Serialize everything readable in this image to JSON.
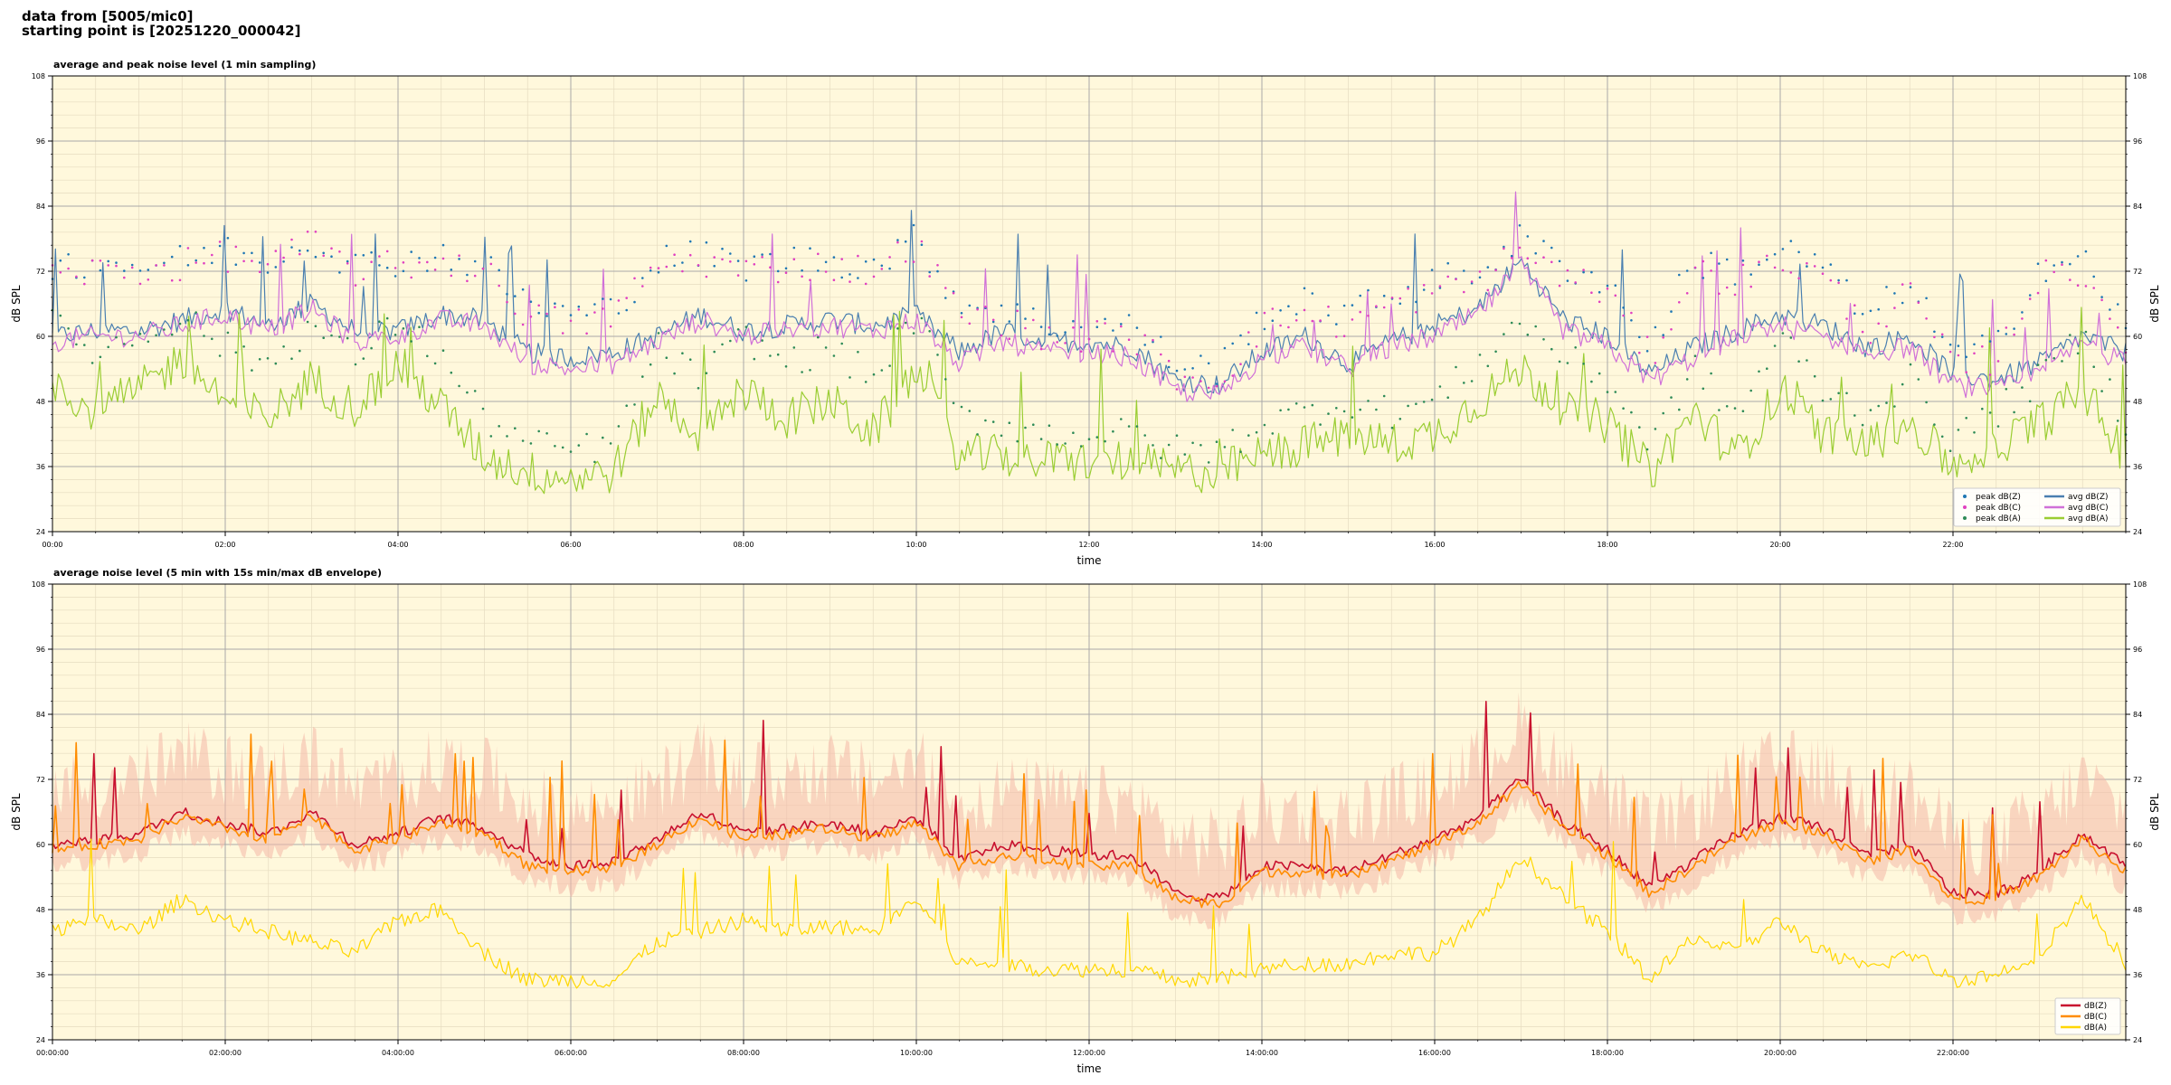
{
  "header": {
    "line1": "data from [5005/mic0]",
    "line2": "starting point is [20251220_000042]"
  },
  "chart_data": [
    {
      "type": "line",
      "title": "average and peak noise level (1 min sampling)",
      "xlabel": "time",
      "ylabel": "dB SPL",
      "ylim": [
        24,
        108
      ],
      "yticks": [
        24,
        36,
        48,
        60,
        72,
        84,
        96,
        108
      ],
      "xlim_hours": [
        0,
        24
      ],
      "xtick_labels": [
        "00:00",
        "02:00",
        "04:00",
        "06:00",
        "08:00",
        "10:00",
        "12:00",
        "14:00",
        "16:00",
        "18:00",
        "20:00",
        "22:00"
      ],
      "grid": true,
      "background": "#fff8dc",
      "legend_position": "lower-right",
      "x_hours": [
        0,
        0.5,
        1,
        1.5,
        2,
        2.5,
        3,
        3.5,
        4,
        4.5,
        5,
        5.5,
        6,
        6.5,
        7,
        7.5,
        8,
        8.5,
        9,
        9.5,
        10,
        10.5,
        11,
        11.5,
        12,
        12.5,
        13,
        13.5,
        14,
        14.5,
        15,
        15.5,
        16,
        16.5,
        17,
        17.5,
        18,
        18.5,
        19,
        19.5,
        20,
        20.5,
        21,
        21.5,
        22,
        22.5,
        23,
        23.5,
        24
      ],
      "series": [
        {
          "name": "avg dB(Z)",
          "color": "#4a7fb0",
          "style": "line",
          "values": [
            60,
            61,
            61,
            63,
            65,
            62,
            66,
            61,
            61,
            64,
            63,
            57,
            56,
            57,
            60,
            64,
            61,
            62,
            63,
            62,
            64,
            57,
            61,
            59,
            59,
            58,
            52,
            51,
            57,
            60,
            55,
            59,
            62,
            65,
            74,
            63,
            60,
            53,
            58,
            61,
            64,
            62,
            58,
            60,
            53,
            52,
            55,
            60,
            57
          ]
        },
        {
          "name": "avg dB(C)",
          "color": "#d070d8",
          "style": "line",
          "values": [
            59,
            60,
            60,
            62,
            64,
            61,
            65,
            59,
            60,
            63,
            62,
            55,
            54,
            55,
            59,
            63,
            60,
            61,
            62,
            61,
            63,
            55,
            59,
            57,
            57,
            56,
            50,
            49,
            56,
            58,
            54,
            58,
            60,
            64,
            73,
            61,
            58,
            52,
            56,
            60,
            62,
            60,
            57,
            58,
            51,
            50,
            53,
            59,
            55
          ]
        },
        {
          "name": "avg dB(A)",
          "color": "#9acd32",
          "style": "line",
          "values": [
            52,
            46,
            50,
            56,
            48,
            45,
            52,
            47,
            55,
            47,
            38,
            35,
            34,
            35,
            49,
            42,
            50,
            45,
            48,
            42,
            54,
            38,
            38,
            37,
            37,
            37,
            35,
            35,
            38,
            40,
            42,
            40,
            42,
            48,
            54,
            47,
            44,
            35,
            46,
            38,
            50,
            42,
            40,
            44,
            36,
            40,
            44,
            50,
            38
          ]
        },
        {
          "name": "peak dB(Z)",
          "color": "#1f77b4",
          "style": "points",
          "values": [
            73,
            74,
            73,
            74,
            76,
            74,
            78,
            73,
            74,
            75,
            73,
            66,
            64,
            65,
            74,
            75,
            73,
            74,
            74,
            73,
            78,
            66,
            65,
            62,
            62,
            62,
            55,
            54,
            64,
            66,
            64,
            68,
            70,
            72,
            78,
            73,
            70,
            58,
            74,
            72,
            76,
            73,
            63,
            70,
            56,
            58,
            73,
            74,
            62
          ]
        },
        {
          "name": "peak dB(C)",
          "color": "#e040c0",
          "style": "points",
          "values": [
            71,
            72,
            72,
            73,
            75,
            73,
            77,
            72,
            73,
            74,
            72,
            64,
            62,
            64,
            73,
            74,
            72,
            73,
            73,
            72,
            77,
            64,
            63,
            60,
            60,
            60,
            53,
            52,
            62,
            64,
            62,
            66,
            68,
            70,
            76,
            71,
            68,
            56,
            72,
            70,
            74,
            71,
            61,
            68,
            54,
            56,
            71,
            72,
            60
          ]
        },
        {
          "name": "peak dB(A)",
          "color": "#2e8b57",
          "style": "points",
          "values": [
            62,
            57,
            60,
            64,
            58,
            55,
            62,
            56,
            63,
            56,
            45,
            40,
            39,
            40,
            58,
            52,
            60,
            55,
            58,
            52,
            64,
            45,
            44,
            42,
            42,
            42,
            39,
            39,
            44,
            46,
            48,
            46,
            48,
            55,
            63,
            56,
            52,
            40,
            54,
            45,
            60,
            50,
            46,
            52,
            41,
            46,
            52,
            60,
            44
          ]
        }
      ]
    },
    {
      "type": "line",
      "title": "average noise level (5 min with 15s min/max dB envelope)",
      "xlabel": "time",
      "ylabel": "dB SPL",
      "ylim": [
        24,
        108
      ],
      "yticks": [
        24,
        36,
        48,
        60,
        72,
        84,
        96,
        108
      ],
      "xlim_hours": [
        0,
        24
      ],
      "xtick_labels": [
        "00:00:00",
        "02:00:00",
        "04:00:00",
        "06:00:00",
        "08:00:00",
        "10:00:00",
        "12:00:00",
        "14:00:00",
        "16:00:00",
        "18:00:00",
        "20:00:00",
        "22:00:00"
      ],
      "grid": true,
      "background": "#fff8dc",
      "legend_position": "lower-right",
      "x_hours": [
        0,
        0.5,
        1,
        1.5,
        2,
        2.5,
        3,
        3.5,
        4,
        4.5,
        5,
        5.5,
        6,
        6.5,
        7,
        7.5,
        8,
        8.5,
        9,
        9.5,
        10,
        10.5,
        11,
        11.5,
        12,
        12.5,
        13,
        13.5,
        14,
        14.5,
        15,
        15.5,
        16,
        16.5,
        17,
        17.5,
        18,
        18.5,
        19,
        19.5,
        20,
        20.5,
        21,
        21.5,
        22,
        22.5,
        23,
        23.5,
        24
      ],
      "series": [
        {
          "name": "dB(Z)",
          "color": "#c8102e",
          "style": "line",
          "values": [
            60,
            61,
            62,
            66,
            64,
            62,
            66,
            60,
            62,
            65,
            63,
            58,
            56,
            57,
            61,
            66,
            62,
            63,
            64,
            62,
            65,
            57,
            60,
            59,
            58,
            58,
            51,
            50,
            56,
            56,
            55,
            58,
            61,
            65,
            72,
            64,
            59,
            52,
            57,
            62,
            65,
            63,
            58,
            60,
            51,
            51,
            55,
            62,
            56
          ]
        },
        {
          "name": "dB(C)",
          "color": "#ff8c00",
          "style": "line",
          "values": [
            59,
            60,
            61,
            65,
            63,
            61,
            65,
            59,
            61,
            64,
            62,
            56,
            55,
            56,
            60,
            65,
            61,
            62,
            63,
            61,
            64,
            56,
            58,
            57,
            56,
            56,
            50,
            49,
            55,
            55,
            54,
            57,
            60,
            64,
            71,
            63,
            58,
            51,
            56,
            61,
            64,
            62,
            57,
            59,
            50,
            50,
            54,
            61,
            55
          ]
        },
        {
          "name": "dB(A)",
          "color": "#ffd700",
          "style": "line",
          "values": [
            44,
            46,
            44,
            50,
            46,
            44,
            42,
            40,
            46,
            48,
            40,
            35,
            35,
            35,
            42,
            44,
            46,
            44,
            45,
            44,
            50,
            38,
            38,
            37,
            37,
            37,
            35,
            35,
            37,
            38,
            38,
            40,
            40,
            46,
            58,
            50,
            44,
            35,
            43,
            40,
            46,
            40,
            37,
            40,
            35,
            36,
            40,
            50,
            38
          ]
        }
      ]
    }
  ]
}
